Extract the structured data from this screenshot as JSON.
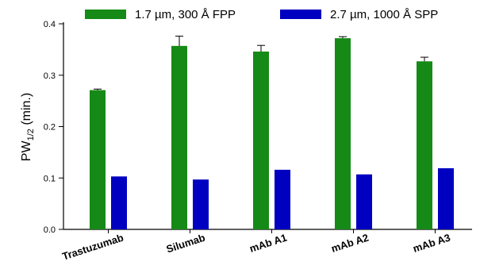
{
  "chart_data": {
    "type": "bar",
    "categories": [
      "Trastuzumab",
      "Silumab",
      "mAb A1",
      "mAb A2",
      "mAb A3"
    ],
    "series": [
      {
        "name": "1.7 µm, 300 Å FPP",
        "color": "#168a16",
        "values": [
          0.271,
          0.357,
          0.346,
          0.372,
          0.327
        ],
        "errors": [
          0.002,
          0.019,
          0.012,
          0.003,
          0.008
        ]
      },
      {
        "name": "2.7 µm, 1000 Å SPP",
        "color": "#0000c0",
        "values": [
          0.103,
          0.097,
          0.116,
          0.107,
          0.119
        ],
        "errors": [
          0,
          0,
          0,
          0,
          0
        ]
      }
    ],
    "ylabel_main": "PW",
    "ylabel_sub": "1/2",
    "ylabel_unit": " (min.)",
    "ylim": [
      0.0,
      0.4
    ],
    "yticks": [
      "0.0",
      "0.1",
      "0.2",
      "0.3",
      "0.4"
    ],
    "legend_position": "top",
    "grid": false
  }
}
